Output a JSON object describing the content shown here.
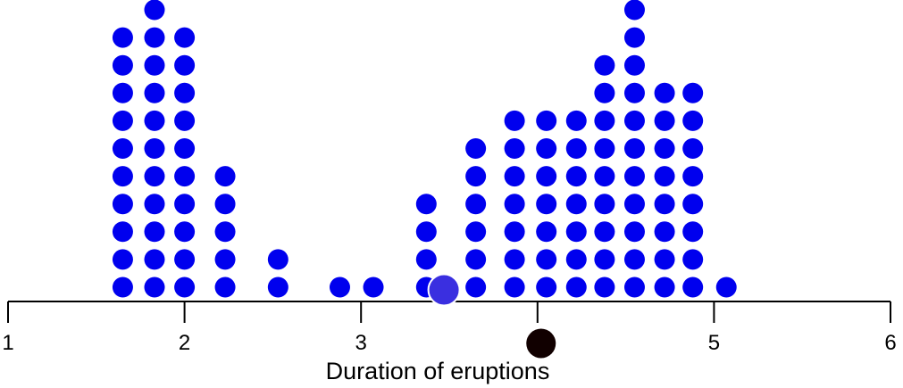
{
  "chart_data": {
    "type": "scatter",
    "subtype": "dot-plot",
    "title": "",
    "xlabel": "Duration of eruptions",
    "ylabel": "",
    "xlim": [
      1,
      6
    ],
    "xticks": [
      1,
      2,
      3,
      4,
      5,
      6
    ],
    "grid": false,
    "legend": "none",
    "dot_color": "#0000ee",
    "stacks": [
      {
        "x": 1.65,
        "count": 10
      },
      {
        "x": 1.83,
        "count": 11
      },
      {
        "x": 2.0,
        "count": 10
      },
      {
        "x": 2.23,
        "count": 5
      },
      {
        "x": 2.53,
        "count": 2
      },
      {
        "x": 2.88,
        "count": 1
      },
      {
        "x": 3.07,
        "count": 1
      },
      {
        "x": 3.37,
        "count": 4
      },
      {
        "x": 3.65,
        "count": 6
      },
      {
        "x": 3.87,
        "count": 7
      },
      {
        "x": 4.05,
        "count": 7
      },
      {
        "x": 4.22,
        "count": 7
      },
      {
        "x": 4.38,
        "count": 9
      },
      {
        "x": 4.55,
        "count": 11
      },
      {
        "x": 4.72,
        "count": 8
      },
      {
        "x": 4.88,
        "count": 8
      },
      {
        "x": 5.07,
        "count": 1
      }
    ],
    "markers": [
      {
        "name": "",
        "x": 3.47,
        "position": "on-axis",
        "color": "#3a2fe0"
      },
      {
        "name": "",
        "x": 4.02,
        "position": "below-axis",
        "color": "#110000"
      }
    ]
  }
}
